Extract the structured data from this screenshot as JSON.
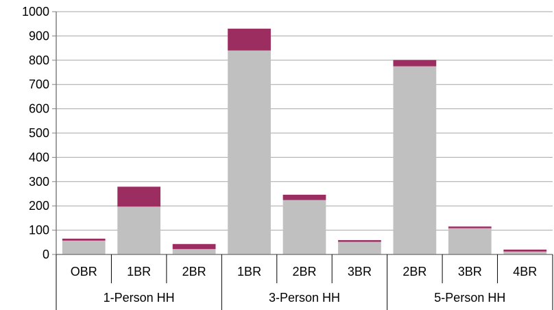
{
  "chart_data": {
    "type": "bar",
    "stacked": true,
    "title": "",
    "xlabel": "",
    "ylabel": "",
    "ylim": [
      0,
      1000
    ],
    "yticks": [
      0,
      100,
      200,
      300,
      400,
      500,
      600,
      700,
      800,
      900,
      1000
    ],
    "grid": true,
    "legend": "none",
    "groups": [
      {
        "label": "1-Person HH",
        "categories": [
          "OBR",
          "1BR",
          "2BR"
        ]
      },
      {
        "label": "3-Person HH",
        "categories": [
          "1BR",
          "2BR",
          "3BR"
        ]
      },
      {
        "label": "5-Person HH",
        "categories": [
          "2BR",
          "3BR",
          "4BR"
        ]
      }
    ],
    "categories": [
      "OBR",
      "1BR",
      "2BR",
      "1BR",
      "2BR",
      "3BR",
      "2BR",
      "3BR",
      "4BR"
    ],
    "series": [
      {
        "color": "#c0c0c0",
        "values": [
          57,
          197,
          22,
          840,
          224,
          52,
          775,
          108,
          12
        ]
      },
      {
        "color": "#9b2d60",
        "values": [
          8,
          82,
          21,
          90,
          22,
          7,
          26,
          7,
          8
        ]
      }
    ]
  }
}
